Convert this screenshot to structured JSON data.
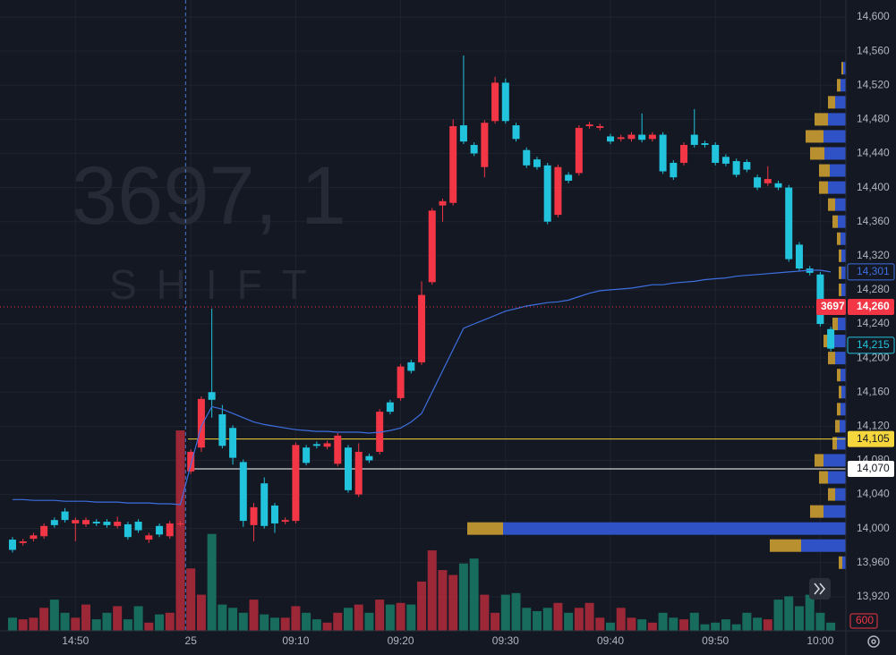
{
  "chart_data": {
    "type": "candlestick",
    "watermark": "3697, 1",
    "watermark_sub": "SHIFT",
    "categories": [
      null,
      null,
      null,
      null,
      null,
      null,
      "14:50",
      null,
      null,
      null,
      null,
      null,
      null,
      null,
      null,
      null,
      null,
      "25",
      null,
      null,
      null,
      null,
      null,
      null,
      null,
      null,
      null,
      "09:10",
      null,
      null,
      null,
      null,
      null,
      null,
      null,
      null,
      null,
      "09:20",
      null,
      null,
      null,
      null,
      null,
      null,
      null,
      null,
      null,
      "09:30",
      null,
      null,
      null,
      null,
      null,
      null,
      null,
      null,
      null,
      "09:40",
      null,
      null,
      null,
      null,
      null,
      null,
      null,
      null,
      null,
      "09:50",
      null,
      null,
      null,
      null,
      null,
      null,
      null,
      null,
      null,
      "10:00",
      null
    ],
    "session_break_index": 17,
    "open": [
      13987,
      13983,
      13988,
      13991,
      14010,
      14020,
      14006,
      14005,
      14008,
      14008,
      14003,
      14005,
      14008,
      13987,
      14003,
      13991,
      14006,
      14067,
      14095,
      14160,
      14134,
      14118,
      14078,
      14004,
      14053,
      14027,
      14008,
      14009,
      14095,
      14099,
      14096,
      14076,
      14095,
      14040,
      14085,
      14090,
      14148,
      14153,
      14195,
      14195,
      14289,
      14379,
      14382,
      14473,
      14450,
      14424,
      14478,
      14523,
      14473,
      14444,
      14433,
      14426,
      14368,
      14415,
      14417,
      14472,
      14470,
      14460,
      14457,
      14457,
      14462,
      14457,
      14462,
      14429,
      14429,
      14462,
      14452,
      14450,
      14436,
      14431,
      14430,
      14412,
      14405,
      14405,
      14400,
      14333,
      14305,
      14298,
      14234
    ],
    "high": [
      13990,
      13988,
      13995,
      14006,
      14013,
      14024,
      14013,
      14013,
      14011,
      14011,
      14014,
      14008,
      14011,
      13995,
      14006,
      14009,
      14009,
      14093,
      14155,
      14258,
      14145,
      14121,
      14081,
      14030,
      14060,
      14030,
      14013,
      14101,
      14098,
      14102,
      14103,
      14112,
      14098,
      14100,
      14088,
      14140,
      14151,
      14193,
      14198,
      14290,
      14376,
      14387,
      14480,
      14555,
      14453,
      14479,
      14530,
      14528,
      14476,
      14447,
      14436,
      14429,
      14427,
      14418,
      14473,
      14477,
      14475,
      14463,
      14462,
      14465,
      14487,
      14465,
      14465,
      14432,
      14453,
      14492,
      14455,
      14453,
      14439,
      14434,
      14433,
      14415,
      14425,
      14408,
      14403,
      14336,
      14308,
      14301,
      14237
    ],
    "low": [
      13972,
      13980,
      13985,
      13988,
      14001,
      14007,
      13985,
      14002,
      14003,
      14001,
      14000,
      13987,
      13995,
      13983,
      13990,
      13988,
      14003,
      14064,
      14090,
      14130,
      14094,
      14075,
      14002,
      13985,
      14000,
      13995,
      14005,
      14006,
      14074,
      14094,
      14093,
      14073,
      14042,
      14037,
      14077,
      14087,
      14134,
      14150,
      14182,
      14192,
      14286,
      14360,
      14379,
      14451,
      14437,
      14412,
      14475,
      14475,
      14454,
      14423,
      14421,
      14357,
      14365,
      14405,
      14414,
      14469,
      14467,
      14451,
      14454,
      14454,
      14453,
      14454,
      14416,
      14409,
      14426,
      14447,
      14447,
      14426,
      14425,
      14412,
      14418,
      14397,
      14402,
      14397,
      14313,
      14302,
      14297,
      14237,
      14208
    ],
    "close": [
      13975,
      13985,
      13992,
      14003,
      14004,
      14010,
      14010,
      14010,
      14006,
      14004,
      14008,
      13990,
      13998,
      13992,
      13993,
      14006,
      14006,
      14090,
      14152,
      14151,
      14097,
      14083,
      14009,
      14025,
      14003,
      14006,
      14010,
      14098,
      14077,
      14097,
      14100,
      14109,
      14045,
      14090,
      14080,
      14137,
      14137,
      14190,
      14185,
      14274,
      14373,
      14384,
      14472,
      14454,
      14440,
      14476,
      14523,
      14478,
      14457,
      14426,
      14424,
      14360,
      14424,
      14408,
      14470,
      14474,
      14472,
      14454,
      14459,
      14462,
      14456,
      14462,
      14419,
      14412,
      14450,
      14450,
      14450,
      14429,
      14428,
      14415,
      14421,
      14400,
      14410,
      14400,
      14316,
      14305,
      14300,
      14240,
      14211
    ],
    "up_color": "#f23645",
    "down_color": "#22c3dc",
    "ylim": [
      13880,
      14620
    ],
    "yticks": [
      {
        "value": 13920,
        "label": "13,920"
      },
      {
        "value": 13960,
        "label": "13,960"
      },
      {
        "value": 14000,
        "label": "14,000"
      },
      {
        "value": 14040,
        "label": "14,040"
      },
      {
        "value": 14080,
        "label": "14,080"
      },
      {
        "value": 14120,
        "label": "14,120"
      },
      {
        "value": 14160,
        "label": "14,160"
      },
      {
        "value": 14200,
        "label": "14,200"
      },
      {
        "value": 14240,
        "label": "14,240"
      },
      {
        "value": 14280,
        "label": "14,280"
      },
      {
        "value": 14320,
        "label": "14,320"
      },
      {
        "value": 14360,
        "label": "14,360"
      },
      {
        "value": 14400,
        "label": "14,400"
      },
      {
        "value": 14440,
        "label": "14,440"
      },
      {
        "value": 14480,
        "label": "14,480"
      },
      {
        "value": 14520,
        "label": "14,520"
      },
      {
        "value": 14560,
        "label": "14,560"
      },
      {
        "value": 14600,
        "label": "14,600"
      }
    ],
    "grid": true,
    "volume": {
      "values": [
        800,
        700,
        800,
        1400,
        1900,
        1100,
        800,
        1600,
        700,
        1100,
        1500,
        700,
        1500,
        500,
        1000,
        1100,
        12200,
        3800,
        2200,
        5900,
        1600,
        1400,
        1100,
        1900,
        1000,
        800,
        800,
        1500,
        1100,
        700,
        500,
        1100,
        1400,
        1600,
        1100,
        1900,
        1600,
        1700,
        1600,
        3000,
        4900,
        3700,
        3400,
        4100,
        4400,
        2200,
        1100,
        2200,
        2300,
        1400,
        1200,
        1400,
        1700,
        1100,
        1400,
        1700,
        800,
        500,
        1400,
        800,
        700,
        500,
        1100,
        800,
        700,
        1100,
        400,
        500,
        700,
        400,
        1100,
        800,
        700,
        1900,
        2100,
        1500,
        2200,
        1100,
        500
      ],
      "up_color": "#b32a3b",
      "down_color": "#177b69",
      "ylim": [
        0,
        38400
      ],
      "yticks": [
        600
      ]
    },
    "vwap": {
      "values": [
        14034,
        14034,
        14033,
        14033,
        14033,
        14032,
        14032,
        14032,
        14031,
        14031,
        14031,
        14030,
        14030,
        14030,
        14029,
        14029,
        14028,
        14075,
        14120,
        14143,
        14140,
        14135,
        14130,
        14125,
        14122,
        14120,
        14118,
        14116,
        14115,
        14114,
        14114,
        14113,
        14113,
        14113,
        14112,
        14113,
        14115,
        14118,
        14125,
        14135,
        14160,
        14185,
        14210,
        14235,
        14240,
        14245,
        14250,
        14255,
        14258,
        14261,
        14263,
        14265,
        14266,
        14268,
        14272,
        14276,
        14279,
        14280,
        14281,
        14282,
        14284,
        14286,
        14286,
        14288,
        14289,
        14290,
        14292,
        14293,
        14294,
        14296,
        14297,
        14298,
        14299,
        14300,
        14301,
        14302,
        14303,
        14303,
        14301
      ],
      "color": "#3d6fe0",
      "last_label": "14,301"
    },
    "price_lines": [
      {
        "value": 14105,
        "label": "14,105",
        "color": "#f5d63d"
      },
      {
        "value": 14070,
        "label": "14,070",
        "color": "#ffffff"
      }
    ],
    "last_price": {
      "value": 14260,
      "label": "14,260",
      "symbol": "3697",
      "color": "#f23645"
    },
    "marker": {
      "value": 14215,
      "label": "14,215",
      "color": "#22c3dc"
    },
    "profile": {
      "levels": [
        13960,
        13980,
        14000,
        14020,
        14040,
        14060,
        14080,
        14100,
        14120,
        14140,
        14160,
        14180,
        14200,
        14220,
        14240,
        14260,
        14280,
        14300,
        14320,
        14340,
        14360,
        14380,
        14400,
        14420,
        14440,
        14460,
        14480,
        14500,
        14520,
        14540
      ],
      "blue": [
        4,
        50,
        383,
        25,
        12,
        20,
        25,
        10,
        7,
        6,
        5,
        6,
        12,
        15,
        9,
        6,
        5,
        5,
        5,
        6,
        9,
        12,
        20,
        18,
        24,
        25,
        20,
        12,
        6,
        3
      ],
      "gold": [
        4,
        35,
        40,
        15,
        8,
        10,
        10,
        5,
        5,
        4,
        3,
        4,
        8,
        10,
        6,
        4,
        3,
        3,
        3,
        4,
        6,
        8,
        10,
        12,
        16,
        20,
        15,
        8,
        4,
        2
      ],
      "blue_color": "#2f52c7",
      "gold_color": "#b8902f",
      "xlim": [
        0,
        430
      ]
    }
  }
}
